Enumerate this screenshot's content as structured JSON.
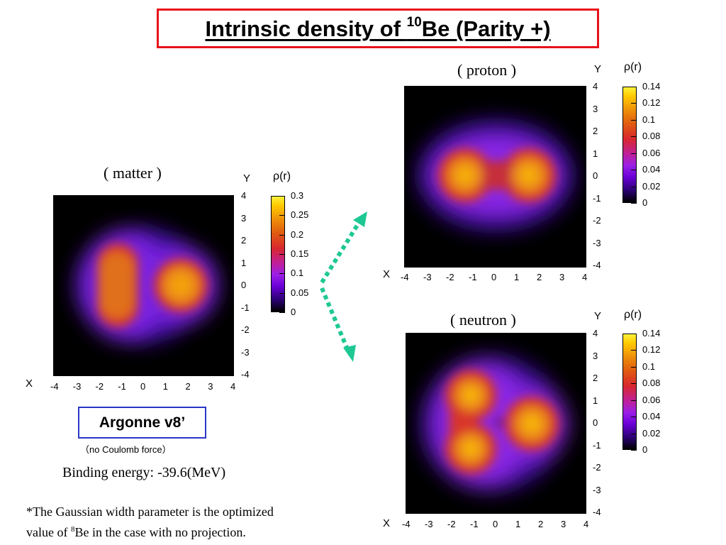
{
  "title": {
    "prefix": "Intrinsic density of ",
    "mass_number": "10",
    "suffix": "Be (Parity +)"
  },
  "colors": {
    "title_border": "#e8121a",
    "label_border": "#2a36c8",
    "arrow": "#1ec893"
  },
  "plots": {
    "matter": {
      "label": "( matter )",
      "y_axis_name": "Y",
      "x_axis_name": "X",
      "colorbar_title": "ρ(r)",
      "colorbar_ticks": [
        "0.3",
        "0.25",
        "0.2",
        "0.15",
        "0.1",
        "0.05",
        "0"
      ],
      "x_ticks": [
        "-4",
        "-3",
        "-2",
        "-1",
        "0",
        "1",
        "2",
        "3",
        "4"
      ],
      "y_ticks": [
        "4",
        "3",
        "2",
        "1",
        "0",
        "-1",
        "-2",
        "-3",
        "-4"
      ]
    },
    "proton": {
      "label": "( proton )",
      "y_axis_name": "Y",
      "x_axis_name": "X",
      "colorbar_title": "ρ(r)",
      "colorbar_ticks": [
        "0.14",
        "0.12",
        "0.1",
        "0.08",
        "0.06",
        "0.04",
        "0.02",
        "0"
      ],
      "x_ticks": [
        "-4",
        "-3",
        "-2",
        "-1",
        "0",
        "1",
        "2",
        "3",
        "4"
      ],
      "y_ticks": [
        "4",
        "3",
        "2",
        "1",
        "0",
        "-1",
        "-2",
        "-3",
        "-4"
      ]
    },
    "neutron": {
      "label": "( neutron )",
      "y_axis_name": "Y",
      "x_axis_name": "X",
      "colorbar_title": "ρ(r)",
      "colorbar_ticks": [
        "0.14",
        "0.12",
        "0.1",
        "0.08",
        "0.06",
        "0.04",
        "0.02",
        "0"
      ],
      "x_ticks": [
        "-4",
        "-3",
        "-2",
        "-1",
        "0",
        "1",
        "2",
        "3",
        "4"
      ],
      "y_ticks": [
        "4",
        "3",
        "2",
        "1",
        "0",
        "-1",
        "-2",
        "-3",
        "-4"
      ]
    }
  },
  "interaction": {
    "name": "Argonne v8",
    "prime": "’",
    "note": "（no  Coulomb  force）"
  },
  "binding_energy": "Binding energy: -39.6(MeV)",
  "footnote": {
    "line1": "*The Gaussian width parameter is the optimized",
    "line2_prefix": "value of ",
    "line2_sup": "8",
    "line2_suffix": "Be in the case with no projection."
  }
}
